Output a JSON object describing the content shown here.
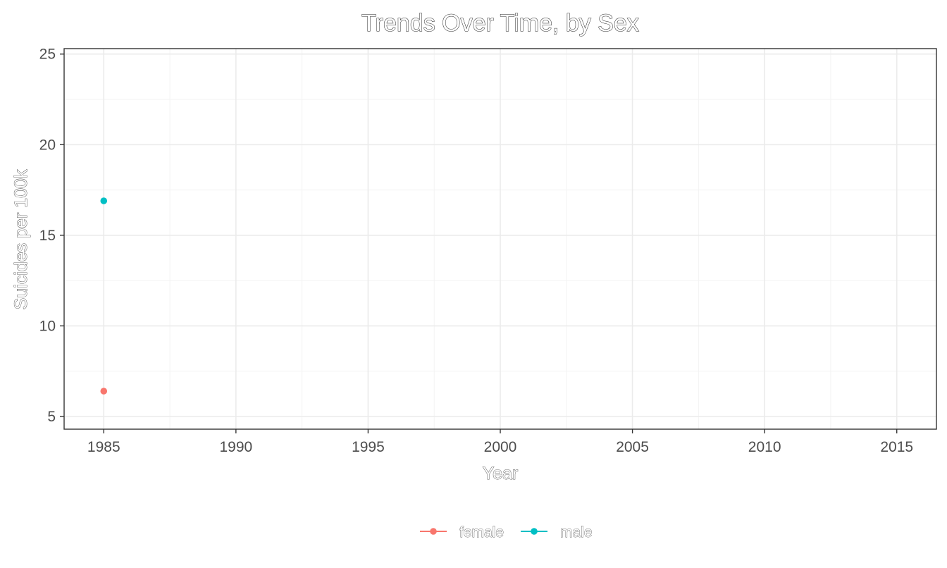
{
  "chart_data": {
    "type": "line",
    "title": "Trends Over Time, by Sex",
    "xlabel": "Year",
    "ylabel": "Suicides per 100k",
    "xlim": [
      1983.5,
      2016.5
    ],
    "ylim": [
      4.3,
      25.3
    ],
    "x_ticks": [
      1985,
      1990,
      1995,
      2000,
      2005,
      2010,
      2015
    ],
    "y_ticks": [
      5,
      10,
      15,
      20,
      25
    ],
    "grid": true,
    "legend_position": "bottom",
    "series": [
      {
        "name": "female",
        "color": "#F8766D",
        "points": [
          {
            "x": 1985,
            "y": 6.4
          }
        ]
      },
      {
        "name": "male",
        "color": "#00BFC4",
        "points": [
          {
            "x": 1985,
            "y": 16.9
          }
        ]
      }
    ]
  }
}
